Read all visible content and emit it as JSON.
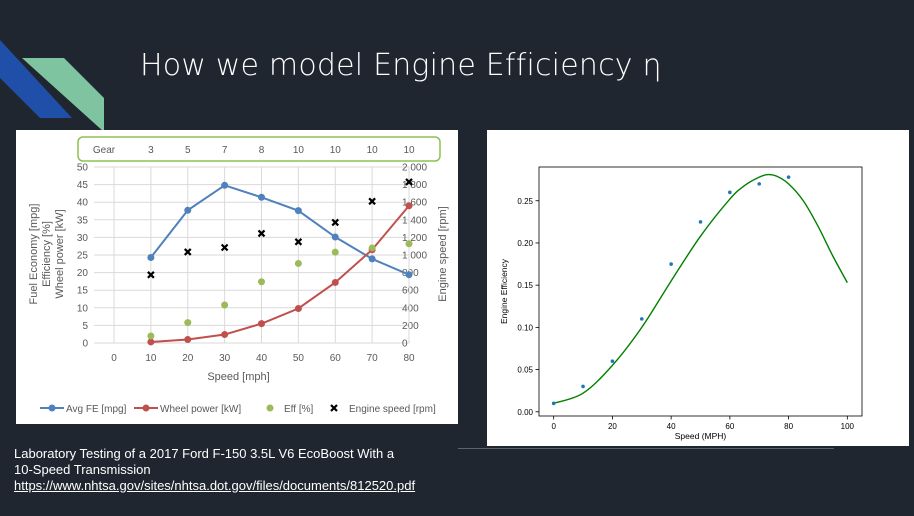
{
  "slide": {
    "title": "How we model Engine Efficiency η",
    "caption": {
      "line1": "Laboratory Testing of a 2017 Ford F-150 3.5L V6 EcoBoost With a",
      "line2": "10-Speed Transmission",
      "link": "https://www.nhtsa.gov/sites/nhtsa.dot.gov/files/documents/812520.pdf"
    },
    "colors": {
      "background": "#1f2630",
      "accent_blue": "#1f4fa8",
      "accent_green": "#7fc4a0"
    }
  },
  "chart_data": [
    {
      "type": "line",
      "gear_label": "Gear",
      "gears": [
        "3",
        "5",
        "7",
        "8",
        "10",
        "10",
        "10",
        "10"
      ],
      "xlabel": "Speed [mph]",
      "ylabel_left": [
        "Fuel Economy [mpg]",
        "Efficiency [%]",
        "Wheel power [kW]"
      ],
      "ylabel_right": "Engine speed [rpm]",
      "x": [
        10,
        20,
        30,
        40,
        50,
        60,
        70,
        80
      ],
      "xlim": [
        0,
        80
      ],
      "ylim_left": [
        0,
        50
      ],
      "ylim_right": [
        0,
        2000
      ],
      "xticks": [
        "0",
        "10",
        "20",
        "30",
        "40",
        "50",
        "60",
        "70",
        "80"
      ],
      "yticks_left": [
        "0",
        "5",
        "10",
        "15",
        "20",
        "25",
        "30",
        "35",
        "40",
        "45",
        "50"
      ],
      "yticks_right": [
        "0",
        "200",
        "400",
        "600",
        "800",
        "1,000",
        "1,200",
        "1,400",
        "1,600",
        "1,800",
        "2,000"
      ],
      "grid": true,
      "legend_position": "bottom",
      "series": [
        {
          "name": "Avg FE [mpg]",
          "axis": "left",
          "style": "line",
          "color": "#4f81bd",
          "values": [
            24.3,
            37.7,
            44.8,
            41.4,
            37.6,
            30.1,
            23.9,
            19.4
          ]
        },
        {
          "name": "Wheel power [kW]",
          "axis": "left",
          "style": "line",
          "color": "#c0504d",
          "values": [
            0.3,
            1.0,
            2.4,
            5.5,
            9.8,
            17.2,
            26.5,
            39.0
          ]
        },
        {
          "name": "Eff [%]",
          "axis": "left",
          "style": "dot",
          "color": "#9bbb59",
          "values": [
            2.0,
            5.8,
            10.8,
            17.4,
            22.6,
            25.8,
            27.0,
            28.2
          ]
        },
        {
          "name": "Engine speed [rpm]",
          "axis": "right",
          "style": "x",
          "color": "#000000",
          "values": [
            775,
            1035,
            1085,
            1245,
            1150,
            1370,
            1610,
            1830
          ]
        }
      ]
    },
    {
      "type": "scatter",
      "xlabel": "Speed (MPH)",
      "ylabel": "Engine Efficiency",
      "xlim": [
        -5,
        105
      ],
      "ylim": [
        -0.005,
        0.29
      ],
      "xticks": [
        "0",
        "20",
        "40",
        "60",
        "80",
        "100"
      ],
      "yticks": [
        "0.00",
        "0.05",
        "0.10",
        "0.15",
        "0.20",
        "0.25"
      ],
      "grid": false,
      "points": {
        "color": "#1f77b4",
        "x": [
          0,
          10,
          20,
          30,
          40,
          50,
          60,
          70,
          80
        ],
        "y": [
          0.01,
          0.03,
          0.06,
          0.11,
          0.175,
          0.225,
          0.26,
          0.27,
          0.278
        ]
      },
      "fit": {
        "color": "#008000",
        "x": [
          0,
          10,
          20,
          30,
          40,
          50,
          60,
          65,
          70,
          73,
          76,
          80,
          85,
          90,
          95,
          100
        ],
        "y": [
          0.01,
          0.022,
          0.055,
          0.1,
          0.155,
          0.208,
          0.252,
          0.268,
          0.278,
          0.281,
          0.279,
          0.27,
          0.25,
          0.22,
          0.185,
          0.153
        ]
      }
    }
  ]
}
